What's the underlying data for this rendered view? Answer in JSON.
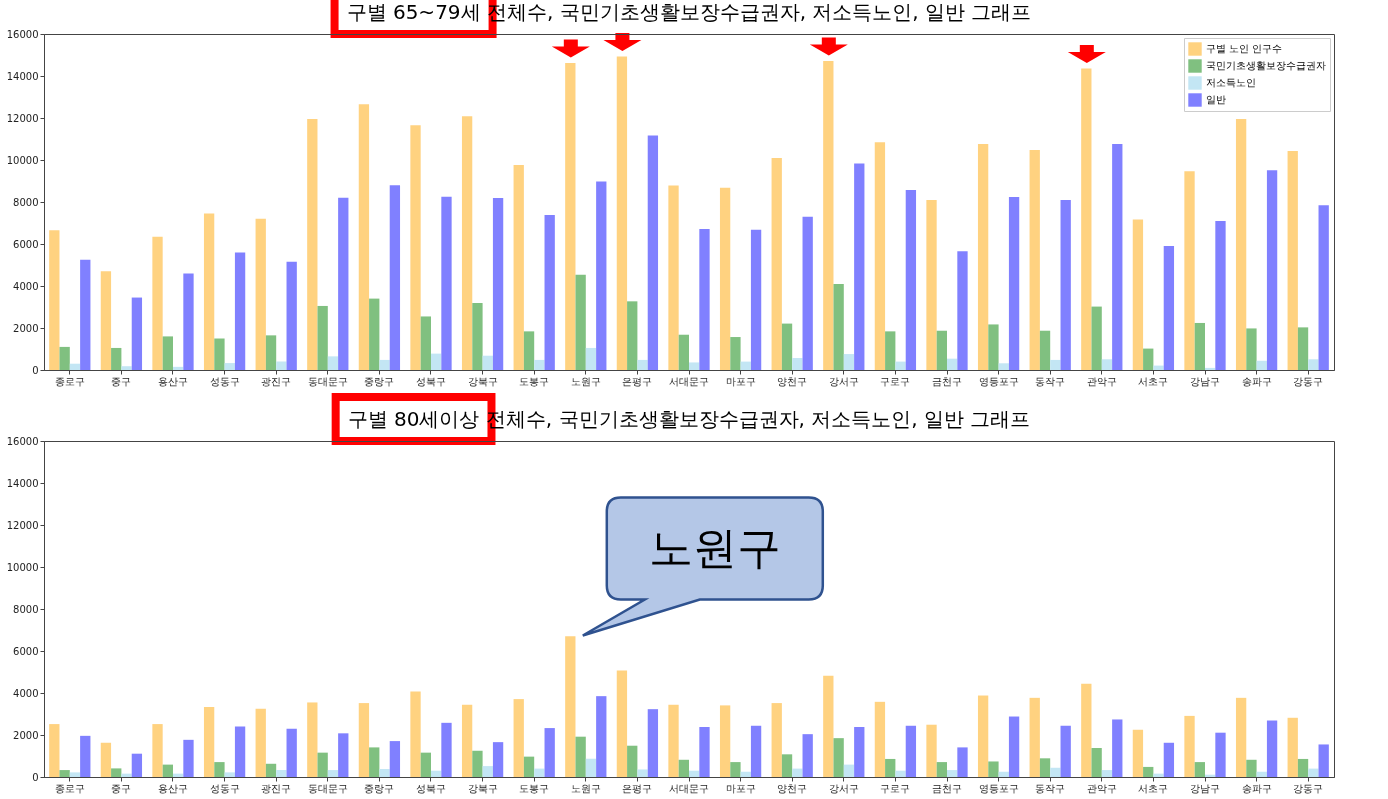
{
  "chart_data": [
    {
      "type": "bar",
      "title": "구별 65~79세 전체수, 국민기초생활보장수급권자, 저소득노인, 일반 그래프",
      "categories": [
        "종로구",
        "중구",
        "용산구",
        "성동구",
        "광진구",
        "동대문구",
        "중랑구",
        "성북구",
        "강북구",
        "도봉구",
        "노원구",
        "은평구",
        "서대문구",
        "마포구",
        "양천구",
        "강서구",
        "구로구",
        "금천구",
        "영등포구",
        "동작구",
        "관악구",
        "서초구",
        "강남구",
        "송파구",
        "강동구"
      ],
      "series": [
        {
          "name": "구별 노인 인구수",
          "color": "#ffd280",
          "values": [
            6650,
            4700,
            6350,
            7450,
            7200,
            11950,
            12650,
            11650,
            12080,
            9760,
            14620,
            14930,
            8790,
            8680,
            10100,
            14710,
            10840,
            8100,
            10760,
            10480,
            14360,
            7170,
            9460,
            11950,
            10430
          ]
        },
        {
          "name": "국민기초생활보장수급권자",
          "color": "#80c080",
          "values": [
            1100,
            1050,
            1600,
            1500,
            1650,
            3050,
            3400,
            2550,
            3190,
            1840,
            4540,
            3270,
            1680,
            1570,
            2210,
            4100,
            1840,
            1870,
            2170,
            1870,
            3020,
            1020,
            2240,
            1980,
            2030
          ]
        },
        {
          "name": "저소득노인",
          "color": "#c3e6f4",
          "values": [
            300,
            180,
            150,
            330,
            400,
            650,
            480,
            780,
            680,
            480,
            1050,
            480,
            360,
            400,
            570,
            760,
            400,
            540,
            320,
            480,
            510,
            210,
            100,
            440,
            510
          ]
        },
        {
          "name": "일반",
          "color": "#8080ff",
          "values": [
            5250,
            3450,
            4600,
            5600,
            5150,
            8200,
            8800,
            8250,
            8190,
            7380,
            8980,
            11170,
            6710,
            6680,
            7300,
            9830,
            8570,
            5650,
            8240,
            8100,
            10760,
            5900,
            7100,
            9510,
            7840
          ]
        }
      ],
      "ylim": [
        0,
        16000
      ],
      "yticks": [
        0,
        2000,
        4000,
        6000,
        8000,
        10000,
        12000,
        14000,
        16000
      ],
      "legend": "top right"
    },
    {
      "type": "bar",
      "title": "구별 80세이상 전체수, 국민기초생활보장수급권자, 저소득노인, 일반 그래프",
      "categories": [
        "종로구",
        "중구",
        "용산구",
        "성동구",
        "광진구",
        "동대문구",
        "중랑구",
        "성북구",
        "강북구",
        "도봉구",
        "노원구",
        "은평구",
        "서대문구",
        "마포구",
        "양천구",
        "강서구",
        "구로구",
        "금천구",
        "영등포구",
        "동작구",
        "관악구",
        "서초구",
        "강남구",
        "송파구",
        "강동구"
      ],
      "series": [
        {
          "name": "구별 노인 인구수",
          "color": "#ffd280",
          "values": [
            2520,
            1630,
            2520,
            3330,
            3250,
            3550,
            3520,
            4070,
            3440,
            3710,
            6700,
            5070,
            3440,
            3410,
            3520,
            4820,
            3580,
            2490,
            3880,
            3770,
            4440,
            2250,
            2910,
            3770,
            2820
          ]
        },
        {
          "name": "국민기초생활보장수급권자",
          "color": "#80c080",
          "values": [
            330,
            410,
            590,
            710,
            630,
            1160,
            1410,
            1160,
            1250,
            970,
            1920,
            1490,
            820,
            710,
            1080,
            1850,
            860,
            710,
            740,
            890,
            1380,
            480,
            710,
            820,
            860
          ]
        },
        {
          "name": "저소득노인",
          "color": "#c3e6f4",
          "values": [
            220,
            160,
            160,
            220,
            330,
            330,
            380,
            300,
            520,
            400,
            870,
            360,
            300,
            250,
            400,
            590,
            300,
            330,
            250,
            440,
            330,
            160,
            110,
            250,
            400
          ]
        },
        {
          "name": "일반",
          "color": "#8080ff",
          "values": [
            1960,
            1110,
            1770,
            2410,
            2300,
            2080,
            1710,
            2580,
            1660,
            2330,
            3850,
            3230,
            2380,
            2440,
            2040,
            2380,
            2440,
            1410,
            2880,
            2440,
            2740,
            1630,
            2110,
            2690,
            1550
          ]
        }
      ],
      "ylim": [
        0,
        16000
      ],
      "yticks": [
        0,
        2000,
        4000,
        6000,
        8000,
        10000,
        12000,
        14000,
        16000
      ],
      "legend": "top right",
      "annotations": [
        "노원구"
      ]
    }
  ]
}
